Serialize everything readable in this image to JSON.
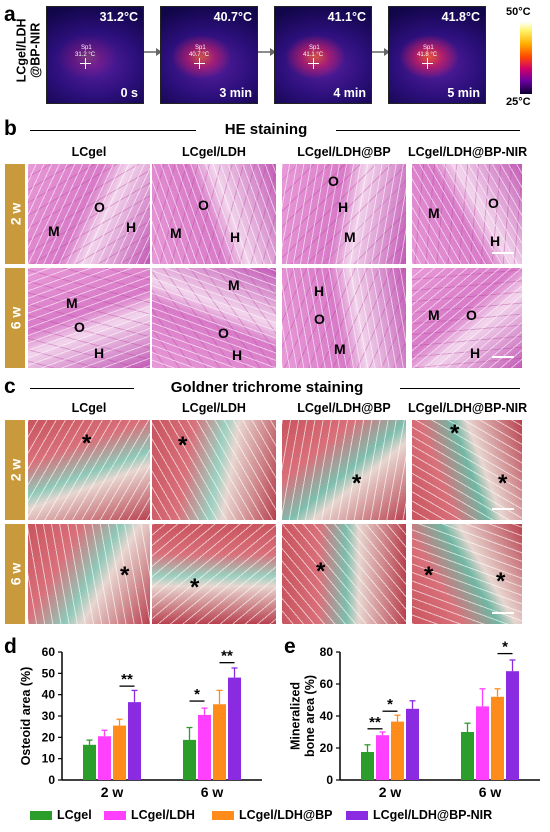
{
  "panel_labels": {
    "a": "a",
    "b": "b",
    "c": "c",
    "d": "d",
    "e": "e"
  },
  "colors": {
    "LCgel": "#2a9d2a",
    "LCgel/LDH": "#ff40ff",
    "LCgel/LDH@BP": "#ff8c1a",
    "LCgel/LDH@BP-NIR": "#8a2be2",
    "row_tag": "#c99a3c"
  },
  "panel_a": {
    "row_label_line1": "LCgel/LDH",
    "row_label_line2": "@BP-NIR",
    "frames": [
      {
        "temp": "31.2°C",
        "time": "0 s",
        "sp_label": "Sp1",
        "sp_value": "31.2 °C"
      },
      {
        "temp": "40.7°C",
        "time": "3 min",
        "sp_label": "Sp1",
        "sp_value": "40.7 °C"
      },
      {
        "temp": "41.1°C",
        "time": "4 min",
        "sp_label": "Sp1",
        "sp_value": "41.1 °C"
      },
      {
        "temp": "41.8°C",
        "time": "5 min",
        "sp_label": "Sp1",
        "sp_value": "41.8 °C"
      }
    ],
    "colorbar_max": "50°C",
    "colorbar_min": "25°C"
  },
  "panel_b": {
    "title": "HE staining",
    "columns": [
      "LCgel",
      "LCgel/LDH",
      "LCgel/LDH@BP",
      "LCgel/LDH@BP-NIR"
    ],
    "rows": [
      "2 w",
      "6 w"
    ],
    "tissue_labels": {
      "M": "M",
      "O": "O",
      "H": "H"
    }
  },
  "panel_c": {
    "title": "Goldner trichrome staining",
    "columns": [
      "LCgel",
      "LCgel/LDH",
      "LCgel/LDH@BP",
      "LCgel/LDH@BP-NIR"
    ],
    "rows": [
      "2 w",
      "6 w"
    ],
    "star": "*"
  },
  "chart_data": [
    {
      "type": "bar",
      "panel": "d",
      "ylabel": "Osteoid area (%)",
      "categories": [
        "2 w",
        "6 w"
      ],
      "ylim": [
        0,
        60
      ],
      "yticks": [
        0,
        10,
        20,
        30,
        40,
        50,
        60
      ],
      "series": [
        {
          "name": "LCgel",
          "values": [
            16.5,
            18.8
          ],
          "errors": [
            2.2,
            5.8
          ]
        },
        {
          "name": "LCgel/LDH",
          "values": [
            20.5,
            30.5
          ],
          "errors": [
            2.8,
            3.2
          ]
        },
        {
          "name": "LCgel/LDH@BP",
          "values": [
            25.5,
            35.5
          ],
          "errors": [
            3.0,
            6.5
          ]
        },
        {
          "name": "LCgel/LDH@BP-NIR",
          "values": [
            36.5,
            48.0
          ],
          "errors": [
            5.5,
            4.5
          ]
        }
      ],
      "significance": [
        {
          "group": 0,
          "from": 2,
          "to": 3,
          "label": "**",
          "y": 44
        },
        {
          "group": 1,
          "from": 0,
          "to": 1,
          "label": "*",
          "y": 37
        },
        {
          "group": 1,
          "from": 2,
          "to": 3,
          "label": "**",
          "y": 55
        }
      ]
    },
    {
      "type": "bar",
      "panel": "e",
      "ylabel": "Mineralized bone area (%)",
      "categories": [
        "2 w",
        "6 w"
      ],
      "ylim": [
        0,
        80
      ],
      "yticks": [
        0,
        20,
        40,
        60,
        80
      ],
      "series": [
        {
          "name": "LCgel",
          "values": [
            17.5,
            30.0
          ],
          "errors": [
            4.5,
            5.5
          ]
        },
        {
          "name": "LCgel/LDH",
          "values": [
            28.0,
            46.0
          ],
          "errors": [
            2.0,
            11.0
          ]
        },
        {
          "name": "LCgel/LDH@BP",
          "values": [
            36.5,
            52.0
          ],
          "errors": [
            4.0,
            5.0
          ]
        },
        {
          "name": "LCgel/LDH@BP-NIR",
          "values": [
            44.5,
            68.0
          ],
          "errors": [
            5.0,
            7.0
          ]
        }
      ],
      "significance": [
        {
          "group": 0,
          "from": 0,
          "to": 1,
          "label": "**",
          "y": 32
        },
        {
          "group": 0,
          "from": 1,
          "to": 2,
          "label": "*",
          "y": 43
        },
        {
          "group": 1,
          "from": 2,
          "to": 3,
          "label": "*",
          "y": 79
        }
      ]
    }
  ],
  "legend": [
    "LCgel",
    "LCgel/LDH",
    "LCgel/LDH@BP",
    "LCgel/LDH@BP-NIR"
  ]
}
